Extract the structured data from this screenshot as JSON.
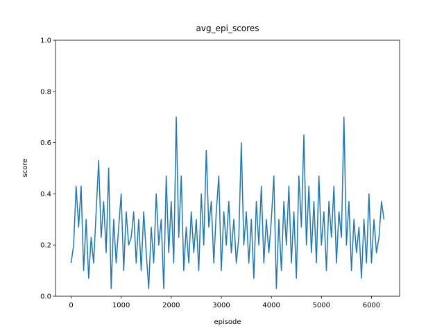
{
  "chart_data": {
    "type": "line",
    "title": "avg_epi_scores",
    "x_label": "episode",
    "y_label": "score",
    "color": "#1f77b4",
    "xlim": [
      -312,
      6562
    ],
    "ylim": [
      0,
      1
    ],
    "xticks": [
      0,
      1000,
      2000,
      3000,
      4000,
      5000,
      6000
    ],
    "yticks": [
      {
        "value": 0,
        "label": "0.0"
      },
      0.2,
      0.4,
      0.6,
      0.8,
      {
        "value": 1,
        "label": "1.0"
      }
    ],
    "x": [
      0,
      50,
      100,
      150,
      200,
      250,
      300,
      350,
      400,
      450,
      500,
      550,
      600,
      650,
      700,
      750,
      800,
      850,
      900,
      950,
      1000,
      1050,
      1100,
      1150,
      1200,
      1250,
      1300,
      1350,
      1400,
      1450,
      1500,
      1550,
      1600,
      1650,
      1700,
      1750,
      1800,
      1850,
      1900,
      1950,
      2000,
      2050,
      2100,
      2150,
      2200,
      2250,
      2300,
      2350,
      2400,
      2450,
      2500,
      2550,
      2600,
      2650,
      2700,
      2750,
      2800,
      2850,
      2900,
      2950,
      3000,
      3050,
      3100,
      3150,
      3200,
      3250,
      3300,
      3350,
      3400,
      3450,
      3500,
      3550,
      3600,
      3650,
      3700,
      3750,
      3800,
      3850,
      3900,
      3950,
      4000,
      4050,
      4100,
      4150,
      4200,
      4250,
      4300,
      4350,
      4400,
      4450,
      4500,
      4550,
      4600,
      4650,
      4700,
      4750,
      4800,
      4850,
      4900,
      4950,
      5000,
      5050,
      5100,
      5150,
      5200,
      5250,
      5300,
      5350,
      5400,
      5450,
      5500,
      5550,
      5600,
      5650,
      5700,
      5750,
      5800,
      5850,
      5900,
      5950,
      6000,
      6050,
      6100,
      6150,
      6200,
      6250
    ],
    "values": [
      0.13,
      0.2,
      0.43,
      0.27,
      0.43,
      0.1,
      0.3,
      0.07,
      0.23,
      0.13,
      0.33,
      0.53,
      0.23,
      0.37,
      0.17,
      0.5,
      0.03,
      0.3,
      0.13,
      0.27,
      0.4,
      0.1,
      0.33,
      0.2,
      0.23,
      0.33,
      0.13,
      0.3,
      0.1,
      0.33,
      0.17,
      0.03,
      0.27,
      0.13,
      0.4,
      0.2,
      0.3,
      0.03,
      0.47,
      0.17,
      0.37,
      0.13,
      0.7,
      0.23,
      0.47,
      0.1,
      0.27,
      0.13,
      0.33,
      0.17,
      0.3,
      0.1,
      0.4,
      0.2,
      0.57,
      0.27,
      0.37,
      0.13,
      0.33,
      0.47,
      0.1,
      0.33,
      0.2,
      0.37,
      0.17,
      0.3,
      0.13,
      0.23,
      0.6,
      0.2,
      0.33,
      0.13,
      0.3,
      0.07,
      0.37,
      0.2,
      0.43,
      0.13,
      0.3,
      0.17,
      0.3,
      0.47,
      0.03,
      0.3,
      0.1,
      0.37,
      0.2,
      0.43,
      0.13,
      0.33,
      0.07,
      0.47,
      0.27,
      0.63,
      0.2,
      0.43,
      0.17,
      0.37,
      0.13,
      0.47,
      0.2,
      0.33,
      0.1,
      0.37,
      0.23,
      0.43,
      0.13,
      0.33,
      0.23,
      0.7,
      0.2,
      0.37,
      0.1,
      0.3,
      0.17,
      0.27,
      0.07,
      0.3,
      0.13,
      0.4,
      0.13,
      0.3,
      0.17,
      0.23,
      0.37,
      0.3
    ]
  }
}
